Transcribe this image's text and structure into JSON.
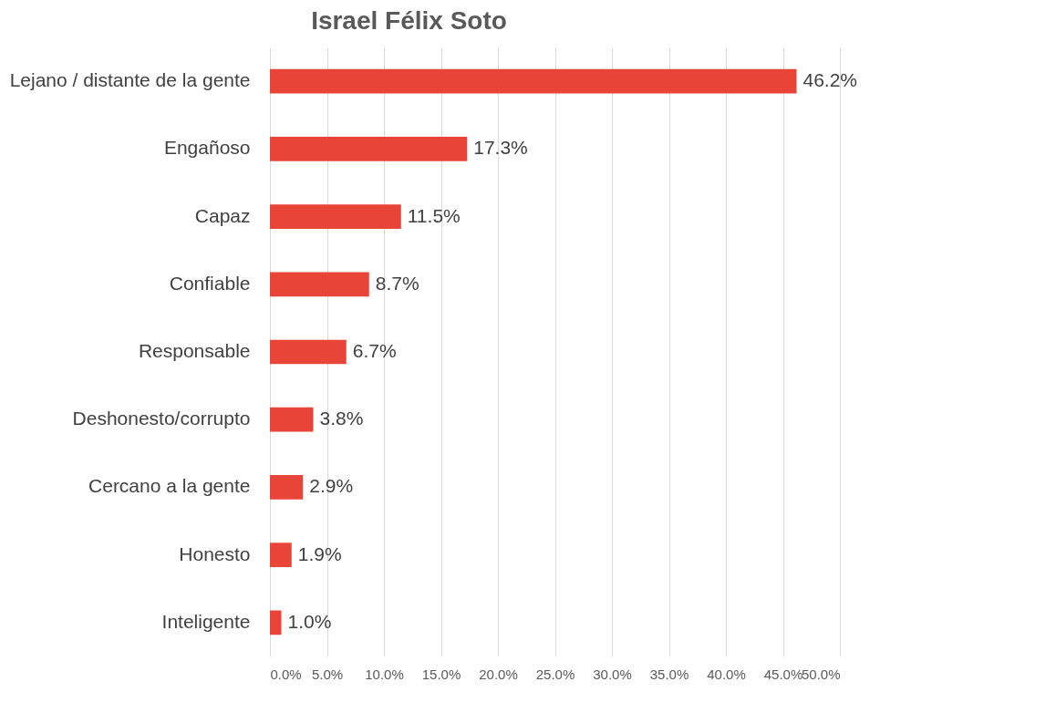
{
  "chart_data": {
    "type": "bar",
    "orientation": "horizontal",
    "title": "Israel Félix Soto",
    "categories": [
      "Lejano / distante de la gente",
      "Engañoso",
      "Capaz",
      "Confiable",
      "Responsable",
      "Deshonesto/corrupto",
      "Cercano a la gente",
      "Honesto",
      "Inteligente"
    ],
    "values": [
      46.2,
      17.3,
      11.5,
      8.7,
      6.7,
      3.8,
      2.9,
      1.9,
      1.0
    ],
    "value_labels": [
      "46.2%",
      "17.3%",
      "11.5%",
      "8.7%",
      "6.7%",
      "3.8%",
      "2.9%",
      "1.9%",
      "1.0%"
    ],
    "color": "#e84538",
    "xlim": [
      0,
      50
    ],
    "xticks": [
      {
        "value": 0,
        "label": "0.0%"
      },
      {
        "value": 5,
        "label": "5.0%"
      },
      {
        "value": 10,
        "label": "10.0%"
      },
      {
        "value": 15,
        "label": "15.0%"
      },
      {
        "value": 20,
        "label": "20.0%"
      },
      {
        "value": 25,
        "label": "25.0%"
      },
      {
        "value": 30,
        "label": "30.0%"
      },
      {
        "value": 35,
        "label": "35.0%"
      },
      {
        "value": 40,
        "label": "40.0%"
      },
      {
        "value": 45,
        "label": "45.0%"
      },
      {
        "value": 50,
        "label": "50.0%"
      }
    ],
    "grid": "x"
  }
}
